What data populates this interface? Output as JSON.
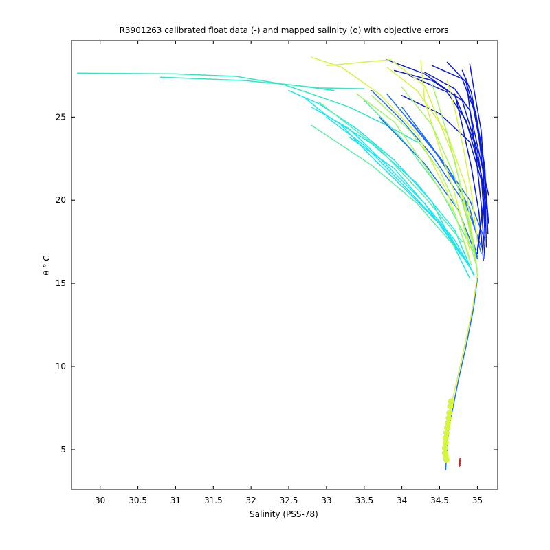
{
  "chart_data": {
    "type": "line",
    "title": "R3901263 calibrated float data (-) and mapped salinity (o) with objective errors",
    "xlabel": "Salinity (PSS-78)",
    "ylabel": "θ ° C",
    "xlim": [
      29.62,
      35.27
    ],
    "ylim": [
      2.6,
      29.6
    ],
    "xticks": [
      30,
      30.5,
      31,
      31.5,
      32,
      32.5,
      33,
      33.5,
      34,
      34.5,
      35
    ],
    "xtick_labels": [
      "30",
      "30.5",
      "31",
      "31.5",
      "32",
      "32.5",
      "33",
      "33.5",
      "34",
      "34.5",
      "35"
    ],
    "yticks": [
      5,
      10,
      15,
      20,
      25
    ],
    "ytick_labels": [
      "5",
      "10",
      "15",
      "20",
      "25"
    ],
    "grid": false,
    "colors": {
      "dark_blue": "#0a1ad2",
      "blue": "#1e6ef0",
      "cyan": "#1ee6f0",
      "teal": "#2ee8c6",
      "aqua_green": "#5cf0a8",
      "light_green": "#a6f46a",
      "yellow_green": "#d6f540",
      "error_bar_red": "#e01818"
    },
    "series": [
      {
        "color": "#2ee8c6",
        "x": [
          29.7,
          31.0,
          31.8,
          32.4,
          32.9,
          33.5
        ],
        "y": [
          27.65,
          27.6,
          27.45,
          27.0,
          26.75,
          26.7
        ]
      },
      {
        "color": "#2ee8c6",
        "x": [
          30.8,
          31.9,
          32.6,
          33.1
        ],
        "y": [
          27.4,
          27.2,
          26.9,
          26.6
        ]
      },
      {
        "color": "#2ee8c6",
        "x": [
          32.4,
          32.8,
          33.3,
          33.8,
          34.2
        ],
        "y": [
          27.0,
          26.4,
          25.6,
          24.5,
          23.5
        ]
      },
      {
        "color": "#1ee6f0",
        "x": [
          32.5,
          32.9,
          33.4,
          33.9,
          34.4,
          34.9
        ],
        "y": [
          26.6,
          25.8,
          24.3,
          22.4,
          19.9,
          15.3
        ]
      },
      {
        "color": "#1ee6f0",
        "x": [
          32.7,
          33.0,
          33.6,
          34.2,
          34.7,
          34.95
        ],
        "y": [
          26.2,
          25.1,
          23.4,
          21.0,
          18.2,
          15.5
        ]
      },
      {
        "color": "#1ee6f0",
        "x": [
          32.8,
          33.3,
          33.8,
          34.3,
          34.8
        ],
        "y": [
          25.6,
          24.3,
          22.1,
          19.8,
          16.6
        ]
      },
      {
        "color": "#1ee6f0",
        "x": [
          33.0,
          33.5,
          34.0,
          34.5,
          34.9
        ],
        "y": [
          25.0,
          23.3,
          21.0,
          18.6,
          16.0
        ]
      },
      {
        "color": "#1ee6f0",
        "x": [
          33.2,
          33.6,
          34.1,
          34.6,
          34.95
        ],
        "y": [
          24.5,
          22.6,
          20.4,
          18.1,
          15.6
        ]
      },
      {
        "color": "#1ee6f0",
        "x": [
          33.3,
          33.9,
          34.3,
          34.7,
          34.96
        ],
        "y": [
          23.8,
          21.9,
          19.8,
          17.6,
          15.5
        ]
      },
      {
        "color": "#5cf0a8",
        "x": [
          32.8,
          33.6,
          34.2,
          34.7
        ],
        "y": [
          24.5,
          22.1,
          19.8,
          17.2
        ]
      },
      {
        "color": "#5cf0a8",
        "x": [
          33.5,
          34.0,
          34.5,
          34.95
        ],
        "y": [
          26.0,
          23.7,
          20.7,
          16.9
        ]
      },
      {
        "color": "#5cf0a8",
        "x": [
          32.9,
          33.7,
          34.3,
          34.8
        ],
        "y": [
          25.9,
          23.1,
          20.2,
          17.5
        ]
      },
      {
        "color": "#1e6ef0",
        "x": [
          33.6,
          34.0,
          34.4,
          34.8,
          35.0
        ],
        "y": [
          26.6,
          24.8,
          22.7,
          20.0,
          16.6
        ]
      },
      {
        "color": "#1e6ef0",
        "x": [
          33.8,
          34.2,
          34.6,
          34.9,
          35.05
        ],
        "y": [
          26.4,
          24.2,
          22.0,
          19.5,
          16.8
        ]
      },
      {
        "color": "#1e6ef0",
        "x": [
          34.0,
          34.4,
          34.8,
          35.05
        ],
        "y": [
          25.6,
          23.2,
          20.4,
          17.2
        ]
      },
      {
        "color": "#1e6ef0",
        "x": [
          34.1,
          34.5,
          34.9,
          35.1
        ],
        "y": [
          24.8,
          22.6,
          20.0,
          17.6
        ]
      },
      {
        "color": "#1e6ef0",
        "x": [
          33.7,
          34.3,
          34.75,
          35.0
        ],
        "y": [
          25.0,
          22.2,
          19.4,
          16.5
        ]
      },
      {
        "color": "#0a1ad2",
        "x": [
          33.8,
          34.3,
          34.7,
          34.95,
          35.1,
          35.0
        ],
        "y": [
          28.45,
          27.6,
          26.3,
          23.6,
          20.5,
          17.0
        ]
      },
      {
        "color": "#0a1ad2",
        "x": [
          33.9,
          34.4,
          34.8,
          35.0,
          35.12
        ],
        "y": [
          27.8,
          27.2,
          26.0,
          23.0,
          19.5
        ]
      },
      {
        "color": "#0a1ad2",
        "x": [
          34.1,
          34.6,
          34.85,
          35.05,
          35.1
        ],
        "y": [
          27.5,
          26.5,
          24.8,
          21.6,
          18.2
        ]
      },
      {
        "color": "#0a1ad2",
        "x": [
          34.3,
          34.7,
          34.9,
          35.0,
          35.15
        ],
        "y": [
          27.7,
          26.7,
          25.4,
          23.3,
          20.3
        ]
      },
      {
        "color": "#0a1ad2",
        "x": [
          34.4,
          34.8,
          34.95,
          35.08,
          35.15
        ],
        "y": [
          28.1,
          27.3,
          25.5,
          22.3,
          18.6
        ]
      },
      {
        "color": "#0a1ad2",
        "x": [
          34.6,
          34.85,
          34.98,
          35.1,
          35.14
        ],
        "y": [
          28.3,
          27.1,
          25.2,
          22.0,
          18.0
        ]
      },
      {
        "color": "#0a1ad2",
        "x": [
          34.8,
          34.92,
          35.0,
          35.08,
          35.1
        ],
        "y": [
          27.8,
          26.5,
          24.6,
          21.5,
          17.6
        ]
      },
      {
        "color": "#0a1ad2",
        "x": [
          34.9,
          34.95,
          35.05,
          35.1,
          35.12
        ],
        "y": [
          28.2,
          26.8,
          24.2,
          21.0,
          17.2
        ]
      },
      {
        "color": "#0a1ad2",
        "x": [
          34.85,
          34.9,
          34.98,
          35.05,
          35.1
        ],
        "y": [
          27.3,
          25.5,
          22.8,
          19.8,
          16.5
        ]
      },
      {
        "color": "#0a1ad2",
        "x": [
          34.7,
          34.8,
          34.92,
          35.02,
          35.08
        ],
        "y": [
          26.4,
          24.5,
          22.0,
          19.3,
          16.4
        ]
      },
      {
        "color": "#0a1ad2",
        "x": [
          34.0,
          34.5,
          34.9,
          35.1,
          35.0
        ],
        "y": [
          26.3,
          25.2,
          23.5,
          20.5,
          16.8
        ]
      },
      {
        "color": "#d6f540",
        "x": [
          32.8,
          33.2,
          33.7,
          34.2,
          34.6,
          34.9
        ],
        "y": [
          28.6,
          28.0,
          26.4,
          24.0,
          20.5,
          16.5
        ]
      },
      {
        "color": "#d6f540",
        "x": [
          33.0,
          33.85,
          34.3,
          34.7,
          34.95
        ],
        "y": [
          28.1,
          28.45,
          26.9,
          22.4,
          17.0
        ]
      },
      {
        "color": "#d6f540",
        "x": [
          34.25,
          34.3,
          34.45,
          34.7,
          34.9
        ],
        "y": [
          28.4,
          26.0,
          23.8,
          20.4,
          17.0
        ]
      },
      {
        "color": "#d6f540",
        "x": [
          33.8,
          34.2,
          34.6,
          34.85,
          34.95
        ],
        "y": [
          28.0,
          26.6,
          24.0,
          20.8,
          17.0
        ]
      },
      {
        "color": "#d6f540",
        "x": [
          34.6,
          34.7,
          34.82,
          34.92,
          35.0
        ],
        "y": [
          27.2,
          25.5,
          23.0,
          20.5,
          17.5
        ]
      },
      {
        "color": "#a6f46a",
        "x": [
          33.4,
          33.9,
          34.3,
          34.7,
          34.92
        ],
        "y": [
          26.4,
          24.7,
          22.1,
          19.2,
          16.1
        ]
      },
      {
        "color": "#a6f46a",
        "x": [
          33.6,
          34.1,
          34.5,
          34.8,
          34.98
        ],
        "y": [
          26.3,
          24.2,
          21.8,
          18.8,
          16.2
        ]
      },
      {
        "color": "#a6f46a",
        "x": [
          34.0,
          34.4,
          34.7,
          34.9,
          35.0
        ],
        "y": [
          26.8,
          24.5,
          21.4,
          18.3,
          15.8
        ]
      },
      {
        "color": "#a6f46a",
        "x": [
          34.4,
          34.6,
          34.8,
          34.95,
          35.0
        ],
        "y": [
          27.0,
          24.0,
          20.5,
          17.5,
          15.5
        ]
      },
      {
        "color": "#1e6ef0",
        "x": [
          35.0,
          34.95,
          34.85,
          34.75,
          34.68,
          34.62,
          34.6,
          34.58
        ],
        "y": [
          15.3,
          13.5,
          11.2,
          9.2,
          7.6,
          6.3,
          5.2,
          3.8
        ]
      },
      {
        "color": "#d6f540",
        "x": [
          35.0,
          34.94,
          34.84,
          34.74,
          34.66,
          34.6,
          34.56,
          34.57
        ],
        "y": [
          15.5,
          13.6,
          11.4,
          9.4,
          7.8,
          6.6,
          5.4,
          4.6
        ]
      }
    ],
    "mapped_points": {
      "color": "#d6f540",
      "x": [
        34.65,
        34.64,
        34.63,
        34.62,
        34.61,
        34.6,
        34.59,
        34.58,
        34.58,
        34.57,
        34.57,
        34.58,
        34.59
      ],
      "y": [
        7.9,
        7.6,
        7.2,
        6.9,
        6.6,
        6.3,
        6.0,
        5.7,
        5.4,
        5.1,
        4.8,
        4.6,
        4.4
      ]
    },
    "error_bars": {
      "color": "#e01818",
      "x": [
        34.76,
        34.77
      ],
      "y_low": [
        3.95,
        4.0
      ],
      "y_high": [
        4.45,
        4.5
      ]
    }
  }
}
